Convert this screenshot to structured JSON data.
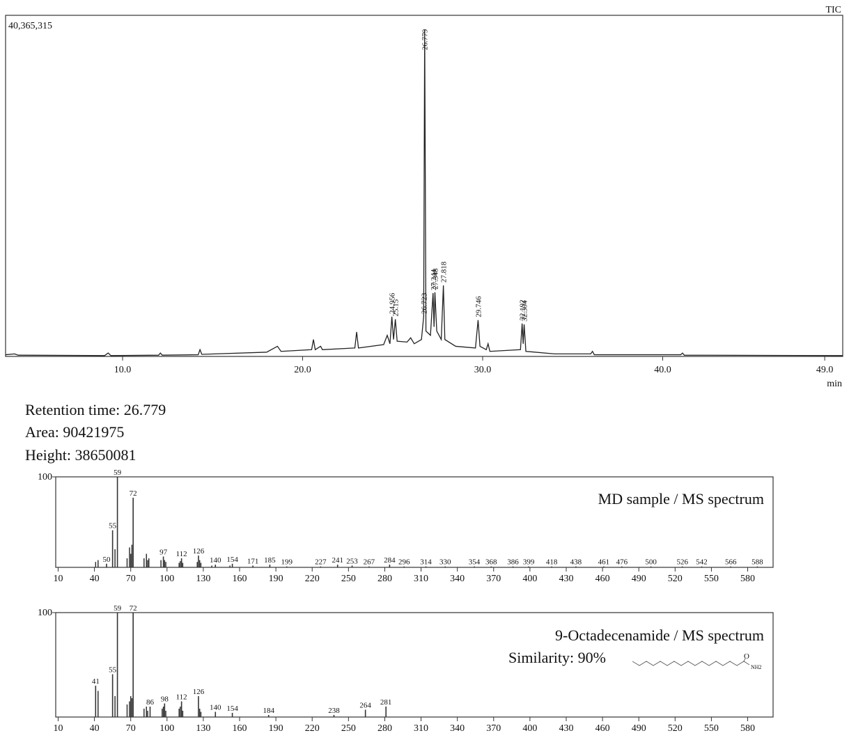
{
  "info": {
    "retention_time": "Retention time: 26.779",
    "area": "Area: 90421975",
    "height": "Height: 38650081"
  },
  "chart_data": [
    {
      "type": "line",
      "trace_label": "TIC",
      "x_unit": "min",
      "color": "#222222",
      "xlim": [
        3.5,
        50
      ],
      "ylim": [
        0,
        40365315
      ],
      "xticks": [
        {
          "value": 10,
          "label": "10.0"
        },
        {
          "value": 20,
          "label": "20.0"
        },
        {
          "value": 30,
          "label": "30.0"
        },
        {
          "value": 40,
          "label": "40.0"
        },
        {
          "value": 49,
          "label": "49.0"
        }
      ],
      "yticks": [
        {
          "value": 40365315,
          "label": "40,365,315"
        }
      ],
      "x": [
        3.5,
        4.0,
        4.2,
        9.0,
        9.2,
        9.35,
        12.0,
        12.1,
        12.2,
        14.2,
        14.3,
        14.4,
        18.0,
        18.6,
        18.8,
        20.5,
        20.6,
        20.7,
        21.0,
        21.1,
        22.9,
        23.0,
        23.1,
        24.5,
        24.7,
        24.85,
        24.956,
        25.05,
        25.15,
        25.25,
        25.8,
        26.0,
        26.2,
        26.6,
        26.723,
        26.779,
        26.85,
        27.1,
        27.244,
        27.3,
        27.348,
        27.45,
        27.7,
        27.818,
        27.9,
        28.5,
        29.6,
        29.746,
        29.85,
        30.2,
        30.3,
        30.4,
        32.1,
        32.192,
        32.25,
        32.304,
        32.4,
        34.0,
        36.0,
        36.1,
        36.2,
        41.0,
        41.1,
        41.2,
        50
      ],
      "values": [
        200000,
        300000,
        150000,
        100000,
        400000,
        100000,
        150000,
        400000,
        150000,
        200000,
        800000,
        250000,
        500000,
        1200000,
        600000,
        800000,
        2000000,
        800000,
        1200000,
        800000,
        1000000,
        2900000,
        1000000,
        1400000,
        2500000,
        1500000,
        4700000,
        2000000,
        4400000,
        1800000,
        1700000,
        2200000,
        1500000,
        2000000,
        4700000,
        38650081,
        3000000,
        2500000,
        7500000,
        3500000,
        7600000,
        3000000,
        2000000,
        8400000,
        2000000,
        1200000,
        1000000,
        4300000,
        1200000,
        800000,
        1500000,
        600000,
        800000,
        3900000,
        1500000,
        3800000,
        600000,
        300000,
        300000,
        600000,
        200000,
        200000,
        400000,
        150000,
        100000
      ],
      "peak_labels": [
        24.956,
        25.15,
        26.723,
        26.779,
        27.244,
        27.348,
        27.818,
        29.746,
        32.192,
        32.304
      ]
    },
    {
      "type": "bar",
      "title": "MD sample / MS spectrum",
      "color": "#333333",
      "xlim": [
        8,
        601
      ],
      "ylim": [
        0,
        100
      ],
      "xticks": [
        10,
        40,
        70,
        100,
        130,
        160,
        190,
        220,
        250,
        280,
        310,
        340,
        370,
        400,
        430,
        460,
        490,
        520,
        550,
        580
      ],
      "yticks": [
        100
      ],
      "x": [
        50,
        55,
        59,
        72,
        97,
        112,
        126,
        140,
        154,
        171,
        185,
        199,
        227,
        241,
        253,
        267,
        284,
        296,
        314,
        330,
        354,
        368,
        386,
        399,
        418,
        438,
        461,
        476,
        500,
        526,
        542,
        566,
        588
      ],
      "values": [
        4,
        41,
        100,
        77,
        12,
        10,
        13,
        3,
        4,
        2,
        3,
        1,
        1,
        3,
        2,
        1,
        3,
        1,
        1,
        1,
        1,
        1,
        1,
        1,
        1,
        1,
        1,
        1,
        1,
        1,
        1,
        1,
        1
      ],
      "minor_x": [
        41,
        43,
        57,
        67,
        69,
        70,
        71,
        81,
        83,
        84,
        85,
        95,
        98,
        99,
        110,
        111,
        113,
        125,
        127,
        128,
        137,
        152
      ],
      "minor_values": [
        6,
        8,
        20,
        10,
        22,
        15,
        25,
        10,
        15,
        8,
        10,
        8,
        8,
        6,
        5,
        7,
        5,
        6,
        8,
        5,
        2,
        2
      ]
    },
    {
      "type": "bar",
      "title": "9-Octadecenamide / MS spectrum",
      "subtitle": "Similarity: 90%",
      "structure_labels": [
        "O",
        "NH2"
      ],
      "color": "#333333",
      "xlim": [
        8,
        601
      ],
      "ylim": [
        0,
        100
      ],
      "xticks": [
        10,
        40,
        70,
        100,
        130,
        160,
        190,
        220,
        250,
        280,
        310,
        340,
        370,
        400,
        430,
        460,
        490,
        520,
        550,
        580
      ],
      "yticks": [
        100
      ],
      "x": [
        41,
        55,
        59,
        72,
        86,
        98,
        112,
        126,
        140,
        154,
        184,
        238,
        264,
        281
      ],
      "values": [
        30,
        41,
        100,
        100,
        10,
        13,
        15,
        20,
        5,
        4,
        2,
        2,
        7,
        10
      ],
      "minor_x": [
        43,
        57,
        67,
        69,
        70,
        71,
        81,
        83,
        84,
        96,
        97,
        99,
        110,
        111,
        113,
        127,
        128
      ],
      "minor_values": [
        25,
        20,
        12,
        15,
        20,
        18,
        8,
        10,
        6,
        8,
        10,
        6,
        8,
        10,
        6,
        8,
        5
      ]
    }
  ]
}
